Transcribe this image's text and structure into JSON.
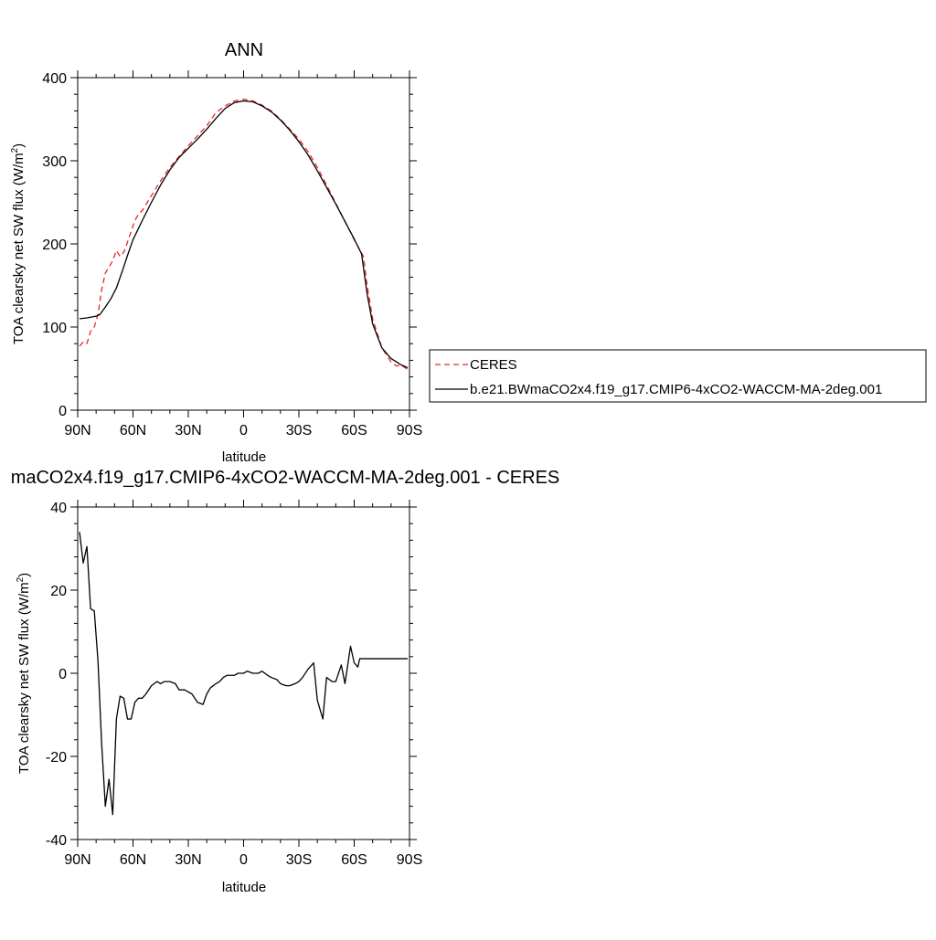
{
  "chart_data": [
    {
      "type": "line",
      "title": "ANN",
      "xlabel": "latitude",
      "ylabel": "TOA clearsky net SW flux (W/m",
      "ylabel_sup": "2",
      "ylabel_close": ")",
      "xlim": [
        90,
        -90
      ],
      "ylim": [
        0,
        400
      ],
      "x_ticks": [
        90,
        60,
        30,
        0,
        -30,
        -60,
        -90
      ],
      "x_tick_labels": [
        "90N",
        "60N",
        "30N",
        "0",
        "30S",
        "60S",
        "90S"
      ],
      "y_ticks": [
        0,
        100,
        200,
        300,
        400
      ],
      "y_tick_labels": [
        "0",
        "100",
        "200",
        "300",
        "400"
      ],
      "legend": {
        "placement": "right",
        "entries": [
          "CERES",
          "b.e21.BWmaCO2x4.f19_g17.CMIP6-4xCO2-WACCM-MA-2deg.001"
        ]
      },
      "series": [
        {
          "name": "CERES",
          "color": "#e8242a",
          "dash": "dashed",
          "x": [
            89,
            87,
            85,
            83,
            81,
            79,
            77,
            75,
            73,
            71,
            69,
            67,
            65,
            63,
            61,
            59,
            57,
            55,
            50,
            45,
            40,
            35,
            30,
            25,
            20,
            15,
            10,
            5,
            0,
            -5,
            -10,
            -15,
            -20,
            -25,
            -30,
            -35,
            -40,
            -45,
            -50,
            -55,
            -60,
            -63,
            -65,
            -67,
            -70,
            -75,
            -80,
            -83,
            -85,
            -87,
            -89
          ],
          "y": [
            77,
            82,
            80,
            95,
            100,
            115,
            145,
            165,
            172,
            180,
            192,
            185,
            190,
            202,
            215,
            228,
            236,
            240,
            258,
            276,
            292,
            305,
            318,
            330,
            342,
            358,
            366,
            372,
            374,
            372,
            367,
            360,
            350,
            338,
            326,
            311,
            292,
            271,
            249,
            227,
            205,
            193,
            185,
            150,
            110,
            75,
            58,
            53,
            54,
            52,
            49
          ]
        },
        {
          "name": "b.e21.BWmaCO2x4.f19_g17.CMIP6-4xCO2-WACCM-MA-2deg.001",
          "color": "#000000",
          "dash": "solid",
          "x": [
            89,
            85,
            80,
            78,
            75,
            72,
            69,
            66,
            63,
            60,
            55,
            50,
            45,
            40,
            35,
            30,
            25,
            20,
            15,
            10,
            5,
            0,
            -5,
            -10,
            -15,
            -20,
            -25,
            -30,
            -35,
            -40,
            -45,
            -50,
            -55,
            -60,
            -62,
            -64,
            -67,
            -70,
            -75,
            -80,
            -83,
            -85,
            -87,
            -89
          ],
          "y": [
            110,
            111,
            113,
            115,
            124,
            134,
            147,
            166,
            186,
            205,
            228,
            250,
            271,
            289,
            304,
            315,
            326,
            338,
            351,
            363,
            370,
            372,
            371,
            366,
            359,
            349,
            337,
            323,
            307,
            288,
            268,
            248,
            227,
            206,
            197,
            188,
            140,
            104,
            75,
            62,
            58,
            55,
            53,
            51
          ]
        }
      ]
    },
    {
      "type": "line",
      "title": "maCO2x4.f19_g17.CMIP6-4xCO2-WACCM-MA-2deg.001 - CERES",
      "xlabel": "latitude",
      "ylabel": "TOA clearsky net SW flux (W/m",
      "ylabel_sup": "2",
      "ylabel_close": ")",
      "xlim": [
        90,
        -90
      ],
      "ylim": [
        -40,
        40
      ],
      "x_ticks": [
        90,
        60,
        30,
        0,
        -30,
        -60,
        -90
      ],
      "x_tick_labels": [
        "90N",
        "60N",
        "30N",
        "0",
        "30S",
        "60S",
        "90S"
      ],
      "y_ticks": [
        -40,
        -20,
        0,
        20,
        40
      ],
      "y_tick_labels": [
        "-40",
        "-20",
        "0",
        "20",
        "40"
      ],
      "series": [
        {
          "color": "#000000",
          "dash": "solid",
          "x": [
            89,
            87,
            85,
            83,
            81,
            79,
            77,
            75,
            73,
            71,
            69,
            67,
            65,
            63,
            61,
            59,
            57,
            55,
            53,
            50,
            47,
            45,
            43,
            40,
            37,
            35,
            32,
            30,
            28,
            25,
            22,
            20,
            18,
            15,
            13,
            11,
            9,
            7,
            5,
            3,
            0,
            -2,
            -5,
            -8,
            -10,
            -13,
            -15,
            -18,
            -20,
            -23,
            -25,
            -28,
            -30,
            -32,
            -35,
            -38,
            -40,
            -43,
            -45,
            -48,
            -50,
            -53,
            -55,
            -58,
            -60,
            -62,
            -63,
            -65,
            -67,
            -69,
            -71,
            -73,
            -75,
            -77,
            -79,
            -81,
            -83,
            -85,
            -87,
            -89
          ],
          "y": [
            34,
            26.5,
            30.5,
            15.5,
            15,
            3,
            -17,
            -32,
            -25.5,
            -34,
            -11,
            -5.5,
            -6,
            -11,
            -11,
            -7,
            -6,
            -6,
            -5,
            -3,
            -2,
            -2.5,
            -2,
            -2,
            -2.5,
            -4,
            -4,
            -4.5,
            -5,
            -7,
            -7.5,
            -5,
            -3.5,
            -2.5,
            -2,
            -1,
            -0.5,
            -0.5,
            -0.5,
            0,
            0,
            0.5,
            0,
            0,
            0.5,
            -0.5,
            -1,
            -1.5,
            -2.5,
            -3,
            -3,
            -2.5,
            -2,
            -1,
            1,
            2.5,
            -6.5,
            -11,
            -1,
            -2,
            -2,
            2,
            -2.5,
            6.5,
            2.5,
            1.5,
            3.5,
            3.5,
            3.5,
            3.5,
            3.5,
            3.5,
            3.5,
            3.5,
            3.5,
            3.5,
            3.5,
            3.5,
            3.5,
            3.5
          ]
        }
      ]
    }
  ]
}
